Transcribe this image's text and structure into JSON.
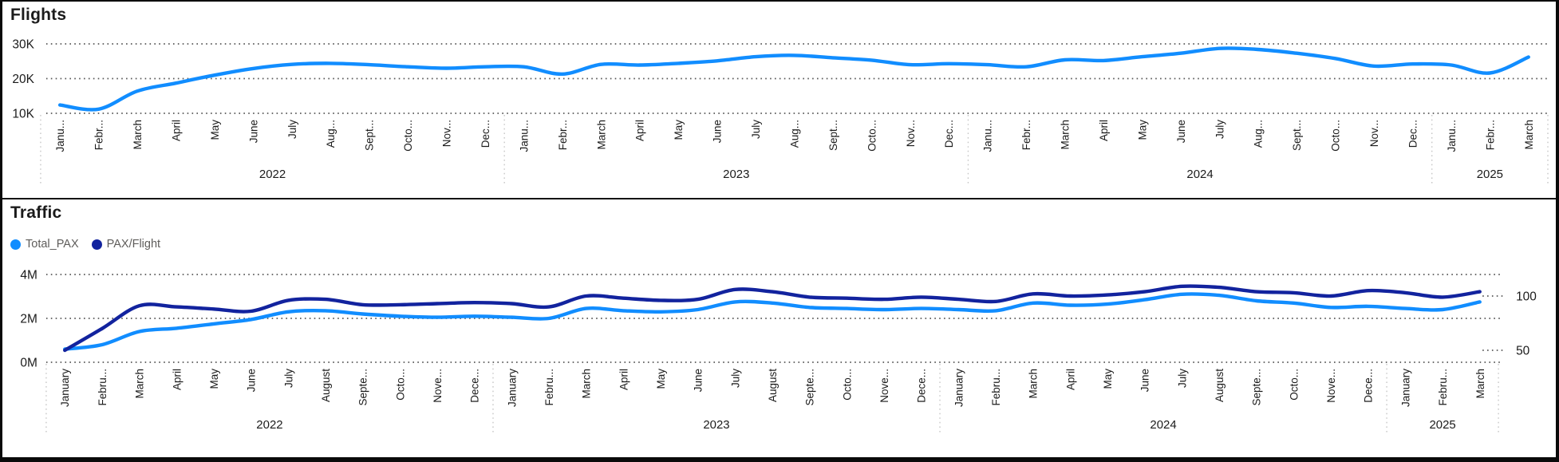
{
  "chart_data": [
    {
      "type": "line",
      "title": "Flights",
      "y_axis": {
        "min": 10000,
        "max": 30000,
        "ticks": [
          {
            "label": "30K",
            "value": 30000
          },
          {
            "label": "20K",
            "value": 20000
          },
          {
            "label": "10K",
            "value": 10000
          }
        ]
      },
      "years": [
        {
          "label": "2022",
          "months": 12
        },
        {
          "label": "2023",
          "months": 12
        },
        {
          "label": "2024",
          "months": 12
        },
        {
          "label": "2025",
          "months": 3
        }
      ],
      "month_labels": [
        "Janu...",
        "Febr...",
        "March",
        "April",
        "May",
        "June",
        "July",
        "Aug...",
        "Sept...",
        "Octo...",
        "Nov...",
        "Dec...",
        "Janu...",
        "Febr...",
        "March",
        "April",
        "May",
        "June",
        "July",
        "Aug...",
        "Sept...",
        "Octo...",
        "Nov...",
        "Dec...",
        "Janu...",
        "Febr...",
        "March",
        "April",
        "May",
        "June",
        "July",
        "Aug...",
        "Sept...",
        "Octo...",
        "Nov...",
        "Dec...",
        "Janu...",
        "Febr...",
        "March"
      ],
      "grid": "dotted",
      "series": [
        {
          "name": "Flights",
          "color": "#118DFF",
          "axis": "left",
          "values": [
            12400,
            11200,
            16400,
            18700,
            21000,
            22900,
            24100,
            24400,
            24000,
            23400,
            23000,
            23400,
            23400,
            21300,
            24100,
            23900,
            24400,
            25100,
            26300,
            26700,
            26000,
            25300,
            24000,
            24300,
            24000,
            23400,
            25400,
            25200,
            26300,
            27300,
            28700,
            28400,
            27300,
            25800,
            23600,
            24200,
            23900,
            21600,
            26200
          ]
        }
      ]
    },
    {
      "type": "line",
      "title": "Traffic",
      "legend": [
        {
          "label": "Total_PAX",
          "color": "#118DFF"
        },
        {
          "label": "PAX/Flight",
          "color": "#12239E"
        }
      ],
      "y_axis_left": {
        "min": 0,
        "max": 4000000,
        "ticks": [
          {
            "label": "4M",
            "value": 4000000
          },
          {
            "label": "2M",
            "value": 2000000
          },
          {
            "label": "0M",
            "value": 0
          }
        ]
      },
      "y_axis_right": {
        "ticks": [
          {
            "label": "100",
            "value": 100
          },
          {
            "label": "50",
            "value": 50
          }
        ]
      },
      "years": [
        {
          "label": "2022",
          "months": 12
        },
        {
          "label": "2023",
          "months": 12
        },
        {
          "label": "2024",
          "months": 12
        },
        {
          "label": "2025",
          "months": 3
        }
      ],
      "month_labels": [
        "January",
        "Febru...",
        "March",
        "April",
        "May",
        "June",
        "July",
        "August",
        "Septe...",
        "Octo...",
        "Nove...",
        "Dece...",
        "January",
        "Febru...",
        "March",
        "April",
        "May",
        "June",
        "July",
        "August",
        "Septe...",
        "Octo...",
        "Nove...",
        "Dece...",
        "January",
        "Febru...",
        "March",
        "April",
        "May",
        "June",
        "July",
        "August",
        "Septe...",
        "Octo...",
        "Nove...",
        "Dece...",
        "January",
        "Febru...",
        "March"
      ],
      "grid": "dotted",
      "series": [
        {
          "name": "Total_PAX",
          "color": "#118DFF",
          "axis": "left",
          "values": [
            600000,
            800000,
            1400000,
            1550000,
            1750000,
            1950000,
            2300000,
            2350000,
            2200000,
            2100000,
            2050000,
            2100000,
            2050000,
            2000000,
            2450000,
            2350000,
            2300000,
            2400000,
            2750000,
            2700000,
            2500000,
            2450000,
            2400000,
            2450000,
            2400000,
            2350000,
            2700000,
            2600000,
            2650000,
            2850000,
            3100000,
            3050000,
            2800000,
            2700000,
            2500000,
            2550000,
            2450000,
            2400000,
            2750000
          ]
        },
        {
          "name": "PAX/Flight",
          "color": "#12239E",
          "axis": "right",
          "values": [
            50,
            70,
            91,
            90,
            88,
            86,
            96,
            97,
            92,
            92,
            93,
            94,
            93,
            90,
            100,
            98,
            96,
            97,
            106,
            104,
            99,
            98,
            97,
            99,
            97,
            95,
            102,
            100,
            101,
            104,
            109,
            108,
            104,
            103,
            100,
            105,
            103,
            99,
            104
          ]
        }
      ]
    }
  ]
}
